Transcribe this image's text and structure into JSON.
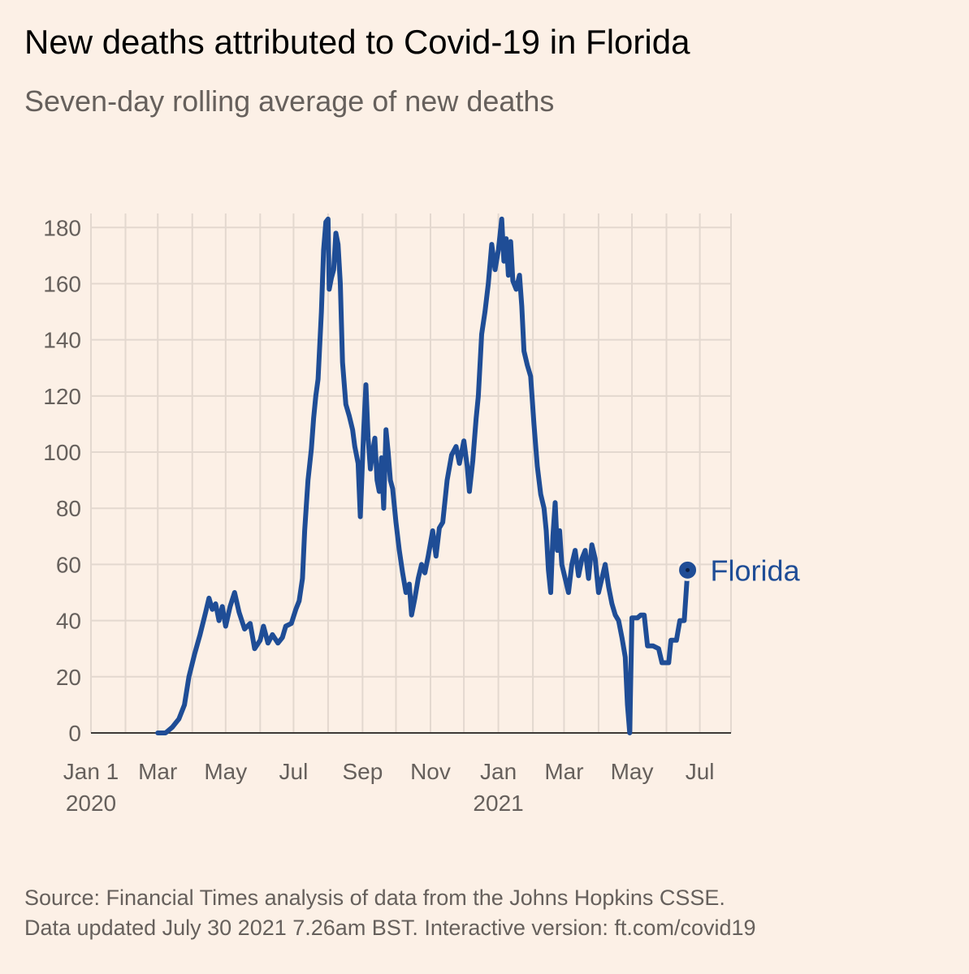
{
  "title": "New deaths attributed to Covid-19 in Florida",
  "subtitle": "Seven-day rolling average of new deaths",
  "source_line1": "Source: Financial Times analysis of data from the Johns Hopkins CSSE.",
  "source_line2": "Data updated July 30 2021 7.26am BST. Interactive version: ft.com/covid19",
  "colors": {
    "background": "#fcf0e6",
    "series": "#1f4d96",
    "grid": "#e3d8cf",
    "axis_text": "#66605c"
  },
  "chart_data": {
    "type": "line",
    "title": "New deaths attributed to Covid-19 in Florida",
    "subtitle": "Seven-day rolling average of new deaths",
    "xlabel": "",
    "ylabel": "",
    "ylim": [
      0,
      185
    ],
    "yticks": [
      0,
      20,
      40,
      60,
      80,
      100,
      120,
      140,
      160,
      180
    ],
    "xlim": [
      "2020-01-01",
      "2021-07-29"
    ],
    "xticks": [
      {
        "date": "2020-01-01",
        "label": "Jan 1",
        "sublabel": "2020"
      },
      {
        "date": "2020-03-01",
        "label": "Mar",
        "sublabel": ""
      },
      {
        "date": "2020-05-01",
        "label": "May",
        "sublabel": ""
      },
      {
        "date": "2020-07-01",
        "label": "Jul",
        "sublabel": ""
      },
      {
        "date": "2020-09-01",
        "label": "Sep",
        "sublabel": ""
      },
      {
        "date": "2020-11-01",
        "label": "Nov",
        "sublabel": ""
      },
      {
        "date": "2021-01-01",
        "label": "Jan",
        "sublabel": "2021"
      },
      {
        "date": "2021-03-01",
        "label": "Mar",
        "sublabel": ""
      },
      {
        "date": "2021-05-01",
        "label": "May",
        "sublabel": ""
      },
      {
        "date": "2021-07-01",
        "label": "Jul",
        "sublabel": ""
      }
    ],
    "grid": true,
    "series": [
      {
        "name": "Florida",
        "points": [
          {
            "x": "2020-03-01",
            "y": 0
          },
          {
            "x": "2020-03-08",
            "y": 0
          },
          {
            "x": "2020-03-14",
            "y": 2
          },
          {
            "x": "2020-03-20",
            "y": 5
          },
          {
            "x": "2020-03-25",
            "y": 10
          },
          {
            "x": "2020-03-29",
            "y": 20
          },
          {
            "x": "2020-04-03",
            "y": 28
          },
          {
            "x": "2020-04-08",
            "y": 35
          },
          {
            "x": "2020-04-13",
            "y": 43
          },
          {
            "x": "2020-04-16",
            "y": 48
          },
          {
            "x": "2020-04-19",
            "y": 44
          },
          {
            "x": "2020-04-22",
            "y": 46
          },
          {
            "x": "2020-04-25",
            "y": 40
          },
          {
            "x": "2020-04-28",
            "y": 45
          },
          {
            "x": "2020-05-01",
            "y": 38
          },
          {
            "x": "2020-05-05",
            "y": 45
          },
          {
            "x": "2020-05-09",
            "y": 50
          },
          {
            "x": "2020-05-13",
            "y": 43
          },
          {
            "x": "2020-05-18",
            "y": 37
          },
          {
            "x": "2020-05-23",
            "y": 39
          },
          {
            "x": "2020-05-27",
            "y": 30
          },
          {
            "x": "2020-06-01",
            "y": 33
          },
          {
            "x": "2020-06-04",
            "y": 38
          },
          {
            "x": "2020-06-08",
            "y": 32
          },
          {
            "x": "2020-06-12",
            "y": 35
          },
          {
            "x": "2020-06-17",
            "y": 32
          },
          {
            "x": "2020-06-21",
            "y": 34
          },
          {
            "x": "2020-06-24",
            "y": 38
          },
          {
            "x": "2020-06-29",
            "y": 39
          },
          {
            "x": "2020-07-03",
            "y": 44
          },
          {
            "x": "2020-07-06",
            "y": 47
          },
          {
            "x": "2020-07-09",
            "y": 55
          },
          {
            "x": "2020-07-11",
            "y": 72
          },
          {
            "x": "2020-07-14",
            "y": 90
          },
          {
            "x": "2020-07-17",
            "y": 101
          },
          {
            "x": "2020-07-19",
            "y": 112
          },
          {
            "x": "2020-07-21",
            "y": 120
          },
          {
            "x": "2020-07-23",
            "y": 126
          },
          {
            "x": "2020-07-26",
            "y": 150
          },
          {
            "x": "2020-07-28",
            "y": 172
          },
          {
            "x": "2020-07-30",
            "y": 182
          },
          {
            "x": "2020-08-01",
            "y": 183
          },
          {
            "x": "2020-08-02",
            "y": 158
          },
          {
            "x": "2020-08-04",
            "y": 162
          },
          {
            "x": "2020-08-06",
            "y": 165
          },
          {
            "x": "2020-08-08",
            "y": 178
          },
          {
            "x": "2020-08-10",
            "y": 174
          },
          {
            "x": "2020-08-12",
            "y": 160
          },
          {
            "x": "2020-08-14",
            "y": 132
          },
          {
            "x": "2020-08-17",
            "y": 117
          },
          {
            "x": "2020-08-20",
            "y": 113
          },
          {
            "x": "2020-08-23",
            "y": 108
          },
          {
            "x": "2020-08-25",
            "y": 102
          },
          {
            "x": "2020-08-28",
            "y": 96
          },
          {
            "x": "2020-08-30",
            "y": 77
          },
          {
            "x": "2020-09-02",
            "y": 108
          },
          {
            "x": "2020-09-04",
            "y": 124
          },
          {
            "x": "2020-09-06",
            "y": 105
          },
          {
            "x": "2020-09-08",
            "y": 94
          },
          {
            "x": "2020-09-10",
            "y": 100
          },
          {
            "x": "2020-09-12",
            "y": 105
          },
          {
            "x": "2020-09-14",
            "y": 90
          },
          {
            "x": "2020-09-16",
            "y": 86
          },
          {
            "x": "2020-09-18",
            "y": 98
          },
          {
            "x": "2020-09-20",
            "y": 80
          },
          {
            "x": "2020-09-22",
            "y": 108
          },
          {
            "x": "2020-09-24",
            "y": 100
          },
          {
            "x": "2020-09-26",
            "y": 90
          },
          {
            "x": "2020-09-28",
            "y": 87
          },
          {
            "x": "2020-10-01",
            "y": 75
          },
          {
            "x": "2020-10-04",
            "y": 65
          },
          {
            "x": "2020-10-07",
            "y": 57
          },
          {
            "x": "2020-10-10",
            "y": 50
          },
          {
            "x": "2020-10-13",
            "y": 53
          },
          {
            "x": "2020-10-15",
            "y": 42
          },
          {
            "x": "2020-10-18",
            "y": 48
          },
          {
            "x": "2020-10-21",
            "y": 55
          },
          {
            "x": "2020-10-24",
            "y": 60
          },
          {
            "x": "2020-10-27",
            "y": 57
          },
          {
            "x": "2020-10-30",
            "y": 63
          },
          {
            "x": "2020-11-03",
            "y": 72
          },
          {
            "x": "2020-11-06",
            "y": 63
          },
          {
            "x": "2020-11-09",
            "y": 73
          },
          {
            "x": "2020-11-12",
            "y": 75
          },
          {
            "x": "2020-11-16",
            "y": 90
          },
          {
            "x": "2020-11-20",
            "y": 99
          },
          {
            "x": "2020-11-24",
            "y": 102
          },
          {
            "x": "2020-11-27",
            "y": 96
          },
          {
            "x": "2020-12-01",
            "y": 104
          },
          {
            "x": "2020-12-04",
            "y": 95
          },
          {
            "x": "2020-12-06",
            "y": 86
          },
          {
            "x": "2020-12-09",
            "y": 97
          },
          {
            "x": "2020-12-12",
            "y": 112
          },
          {
            "x": "2020-12-14",
            "y": 120
          },
          {
            "x": "2020-12-17",
            "y": 142
          },
          {
            "x": "2020-12-20",
            "y": 150
          },
          {
            "x": "2020-12-23",
            "y": 160
          },
          {
            "x": "2020-12-26",
            "y": 174
          },
          {
            "x": "2020-12-29",
            "y": 165
          },
          {
            "x": "2021-01-01",
            "y": 172
          },
          {
            "x": "2021-01-04",
            "y": 183
          },
          {
            "x": "2021-01-06",
            "y": 168
          },
          {
            "x": "2021-01-08",
            "y": 176
          },
          {
            "x": "2021-01-10",
            "y": 163
          },
          {
            "x": "2021-01-12",
            "y": 175
          },
          {
            "x": "2021-01-14",
            "y": 161
          },
          {
            "x": "2021-01-17",
            "y": 158
          },
          {
            "x": "2021-01-20",
            "y": 163
          },
          {
            "x": "2021-01-22",
            "y": 152
          },
          {
            "x": "2021-01-24",
            "y": 136
          },
          {
            "x": "2021-01-27",
            "y": 131
          },
          {
            "x": "2021-01-30",
            "y": 127
          },
          {
            "x": "2021-02-02",
            "y": 110
          },
          {
            "x": "2021-02-05",
            "y": 95
          },
          {
            "x": "2021-02-08",
            "y": 85
          },
          {
            "x": "2021-02-11",
            "y": 80
          },
          {
            "x": "2021-02-13",
            "y": 72
          },
          {
            "x": "2021-02-15",
            "y": 58
          },
          {
            "x": "2021-02-17",
            "y": 50
          },
          {
            "x": "2021-02-19",
            "y": 70
          },
          {
            "x": "2021-02-21",
            "y": 82
          },
          {
            "x": "2021-02-23",
            "y": 65
          },
          {
            "x": "2021-02-25",
            "y": 72
          },
          {
            "x": "2021-02-27",
            "y": 60
          },
          {
            "x": "2021-03-02",
            "y": 55
          },
          {
            "x": "2021-03-05",
            "y": 50
          },
          {
            "x": "2021-03-08",
            "y": 60
          },
          {
            "x": "2021-03-11",
            "y": 65
          },
          {
            "x": "2021-03-14",
            "y": 56
          },
          {
            "x": "2021-03-17",
            "y": 62
          },
          {
            "x": "2021-03-20",
            "y": 65
          },
          {
            "x": "2021-03-23",
            "y": 55
          },
          {
            "x": "2021-03-26",
            "y": 67
          },
          {
            "x": "2021-03-29",
            "y": 62
          },
          {
            "x": "2021-04-01",
            "y": 50
          },
          {
            "x": "2021-04-04",
            "y": 55
          },
          {
            "x": "2021-04-07",
            "y": 60
          },
          {
            "x": "2021-04-10",
            "y": 52
          },
          {
            "x": "2021-04-13",
            "y": 46
          },
          {
            "x": "2021-04-16",
            "y": 42
          },
          {
            "x": "2021-04-19",
            "y": 40
          },
          {
            "x": "2021-04-22",
            "y": 34
          },
          {
            "x": "2021-04-25",
            "y": 27
          },
          {
            "x": "2021-04-27",
            "y": 10
          },
          {
            "x": "2021-04-29",
            "y": 0
          },
          {
            "x": "2021-05-01",
            "y": 41
          },
          {
            "x": "2021-05-06",
            "y": 41
          },
          {
            "x": "2021-05-09",
            "y": 42
          },
          {
            "x": "2021-05-12",
            "y": 42
          },
          {
            "x": "2021-05-15",
            "y": 31
          },
          {
            "x": "2021-05-20",
            "y": 31
          },
          {
            "x": "2021-05-25",
            "y": 30
          },
          {
            "x": "2021-05-28",
            "y": 25
          },
          {
            "x": "2021-06-03",
            "y": 25
          },
          {
            "x": "2021-06-05",
            "y": 33
          },
          {
            "x": "2021-06-10",
            "y": 33
          },
          {
            "x": "2021-06-13",
            "y": 40
          },
          {
            "x": "2021-06-17",
            "y": 40
          },
          {
            "x": "2021-06-20",
            "y": 58
          }
        ]
      }
    ]
  }
}
